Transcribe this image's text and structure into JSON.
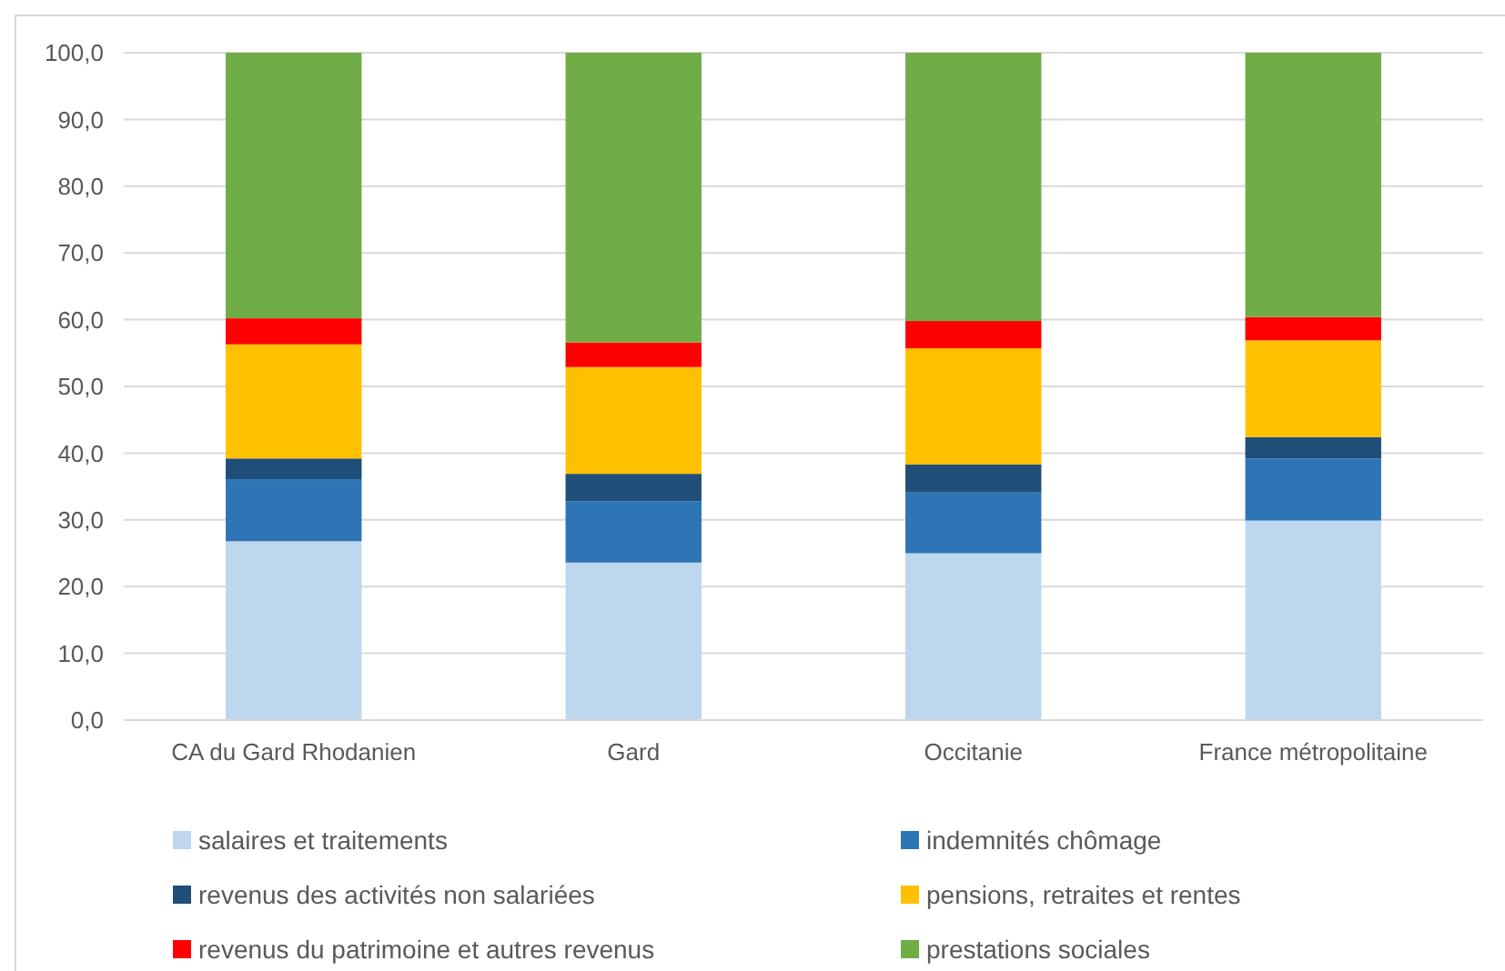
{
  "chart_data": {
    "type": "bar",
    "stacked": true,
    "categories": [
      "CA du Gard Rhodanien",
      "Gard",
      "Occitanie",
      "France métropolitaine"
    ],
    "series": [
      {
        "name": "salaires et traitements",
        "color": "#bdd7ee",
        "values": [
          26.8,
          23.6,
          25.0,
          29.9
        ]
      },
      {
        "name": "indemnités chômage",
        "color": "#2e75b6",
        "values": [
          9.3,
          9.2,
          9.1,
          9.3
        ]
      },
      {
        "name": "revenus des activités non salariées",
        "color": "#1f4e79",
        "values": [
          3.1,
          4.1,
          4.2,
          3.2
        ]
      },
      {
        "name": "pensions, retraites et rentes",
        "color": "#ffc000",
        "values": [
          17.1,
          16.0,
          17.4,
          14.5
        ]
      },
      {
        "name": "revenus du patrimoine et autres revenus",
        "color": "#ff0000",
        "values": [
          3.9,
          3.7,
          4.1,
          3.5
        ]
      },
      {
        "name": "prestations sociales",
        "color": "#70ad47",
        "values": [
          39.8,
          43.4,
          40.2,
          39.6
        ]
      }
    ],
    "ylim": [
      0,
      100
    ],
    "yticks": [
      {
        "value": 0,
        "label": "0,0"
      },
      {
        "value": 10,
        "label": "10,0"
      },
      {
        "value": 20,
        "label": "20,0"
      },
      {
        "value": 30,
        "label": "30,0"
      },
      {
        "value": 40,
        "label": "40,0"
      },
      {
        "value": 50,
        "label": "50,0"
      },
      {
        "value": 60,
        "label": "60,0"
      },
      {
        "value": 70,
        "label": "70,0"
      },
      {
        "value": 80,
        "label": "80,0"
      },
      {
        "value": 90,
        "label": "90,0"
      },
      {
        "value": 100,
        "label": "100,0"
      }
    ],
    "grid": "y",
    "legend": "bottom"
  }
}
